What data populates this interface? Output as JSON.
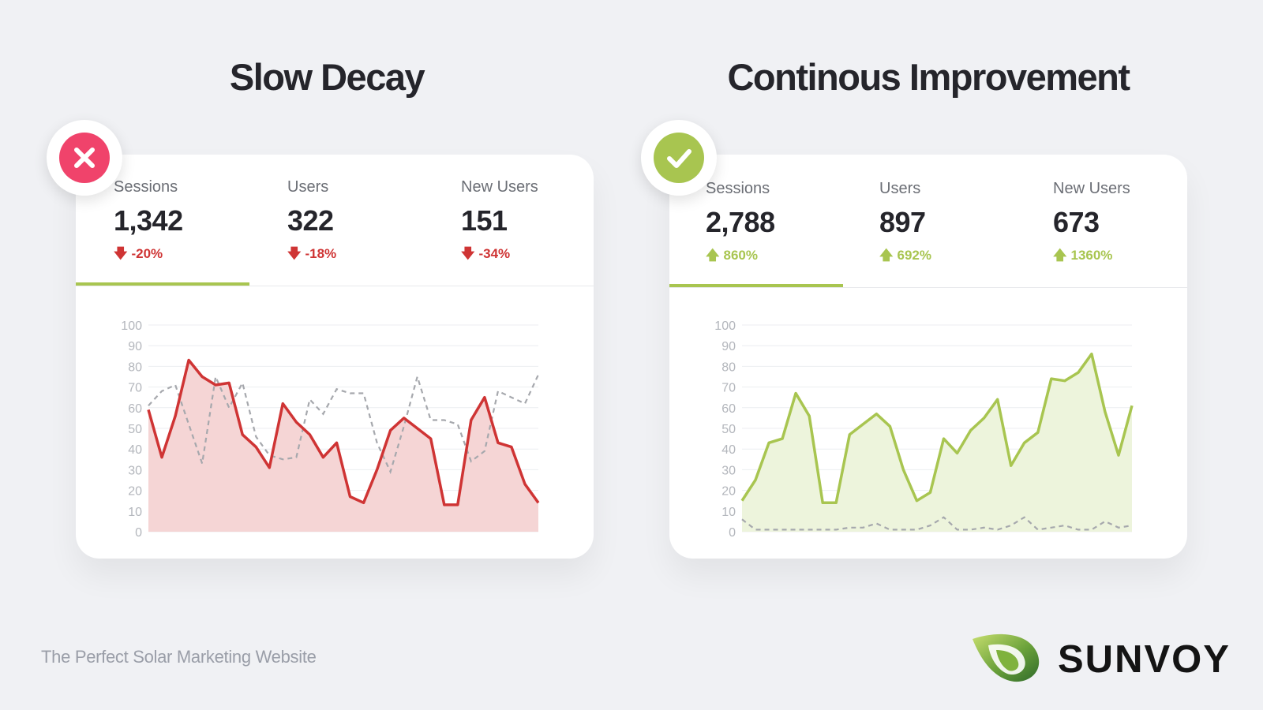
{
  "panels": [
    {
      "title": "Slow Decay",
      "status": "negative",
      "stats": [
        {
          "label": "Sessions",
          "value": "1,342",
          "change": "-20%"
        },
        {
          "label": "Users",
          "value": "322",
          "change": "-18%"
        },
        {
          "label": "New Users",
          "value": "151",
          "change": "-34%"
        }
      ]
    },
    {
      "title": "Continous Improvement",
      "status": "positive",
      "stats": [
        {
          "label": "Sessions",
          "value": "2,788",
          "change": "860%"
        },
        {
          "label": "Users",
          "value": "897",
          "change": "692%"
        },
        {
          "label": "New Users",
          "value": "673",
          "change": "1360%"
        }
      ]
    }
  ],
  "colors": {
    "negative": "#cf3434",
    "negative_fill": "#f5d5d5",
    "positive": "#a8c550",
    "positive_fill": "#edf4dc",
    "comparison": "#a6a8ad",
    "badge_x": "#f0436b",
    "badge_check": "#a8c550",
    "tab_indicator": "#a8c550"
  },
  "icons": {
    "badge_negative": "close-icon",
    "badge_positive": "check-icon",
    "change_down": "arrow-down-icon",
    "change_up": "arrow-up-icon",
    "logo": "leaf-logo-icon"
  },
  "footer": {
    "tagline": "The Perfect Solar Marketing Website"
  },
  "brand": {
    "name": "SUNVOY"
  },
  "chart_data": [
    {
      "type": "area",
      "ylim": [
        0,
        100
      ],
      "yticks": [
        0,
        10,
        20,
        30,
        40,
        50,
        60,
        70,
        80,
        90,
        100
      ],
      "grid": true,
      "series": [
        {
          "style": "solid-area",
          "values": [
            59,
            36,
            56,
            83,
            75,
            71,
            72,
            47,
            41,
            31,
            62,
            53,
            47,
            36,
            43,
            17,
            14,
            30,
            49,
            55,
            50,
            45,
            13,
            13,
            54,
            65,
            43,
            41,
            23,
            14
          ]
        },
        {
          "style": "dashed",
          "values": [
            61,
            68,
            71,
            52,
            33,
            75,
            60,
            72,
            46,
            37,
            35,
            36,
            64,
            57,
            69,
            67,
            67,
            43,
            29,
            51,
            75,
            54,
            54,
            52,
            34,
            39,
            68,
            65,
            62,
            76
          ]
        }
      ]
    },
    {
      "type": "area",
      "ylim": [
        0,
        100
      ],
      "yticks": [
        0,
        10,
        20,
        30,
        40,
        50,
        60,
        70,
        80,
        90,
        100
      ],
      "grid": true,
      "series": [
        {
          "style": "solid-area",
          "values": [
            15,
            25,
            43,
            45,
            67,
            56,
            14,
            14,
            47,
            52,
            57,
            51,
            30,
            15,
            19,
            45,
            38,
            49,
            55,
            64,
            32,
            43,
            48,
            74,
            73,
            77,
            86,
            58,
            37,
            61
          ]
        },
        {
          "style": "dashed",
          "values": [
            6,
            1,
            1,
            1,
            1,
            1,
            1,
            1,
            2,
            2,
            4,
            1,
            1,
            1,
            3,
            7,
            1,
            1,
            2,
            1,
            3,
            7,
            1,
            2,
            3,
            1,
            1,
            5,
            2,
            3
          ]
        }
      ]
    }
  ]
}
